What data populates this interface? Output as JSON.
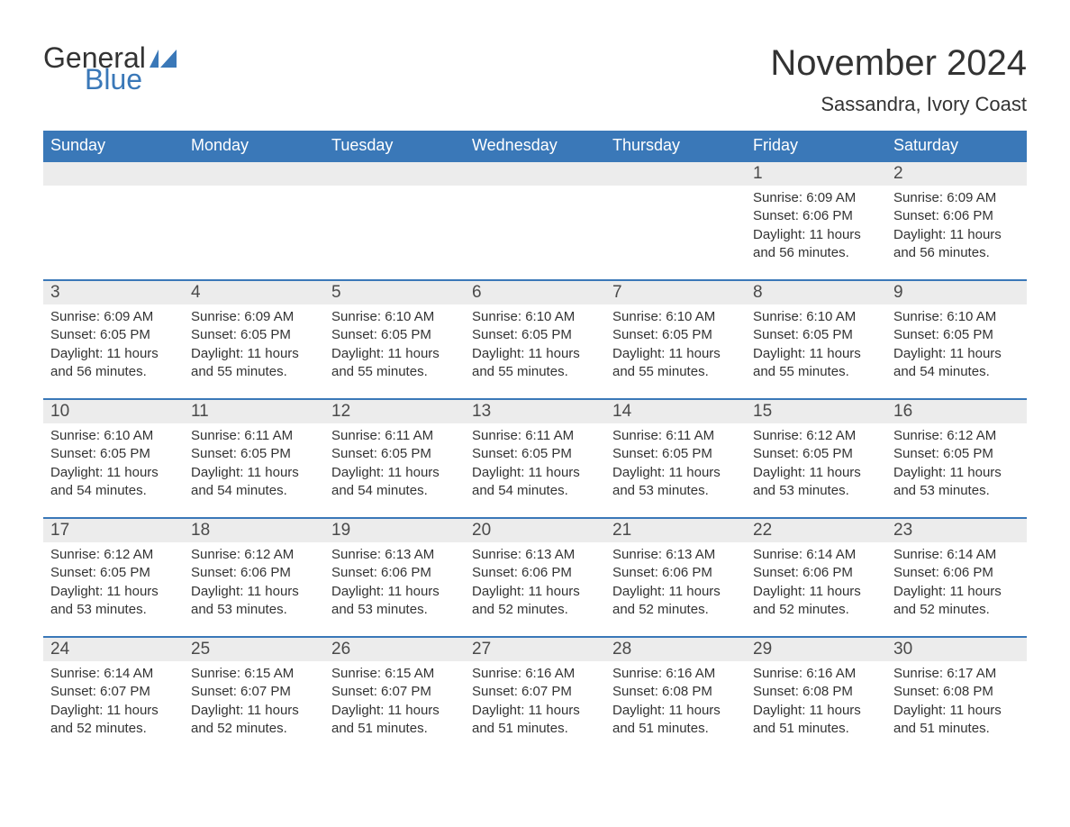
{
  "logo": {
    "part1": "General",
    "part2": "Blue",
    "flag_color": "#3a78b8"
  },
  "title": "November 2024",
  "location": "Sassandra, Ivory Coast",
  "colors": {
    "header_bg": "#3a78b8",
    "header_text": "#ffffff",
    "daynum_bg": "#ececec",
    "daynum_border": "#3a78b8",
    "body_text": "#333333",
    "page_bg": "#ffffff"
  },
  "weekdays": [
    "Sunday",
    "Monday",
    "Tuesday",
    "Wednesday",
    "Thursday",
    "Friday",
    "Saturday"
  ],
  "weeks": [
    [
      null,
      null,
      null,
      null,
      null,
      {
        "day": "1",
        "sunrise": "6:09 AM",
        "sunset": "6:06 PM",
        "daylight": "11 hours and 56 minutes."
      },
      {
        "day": "2",
        "sunrise": "6:09 AM",
        "sunset": "6:06 PM",
        "daylight": "11 hours and 56 minutes."
      }
    ],
    [
      {
        "day": "3",
        "sunrise": "6:09 AM",
        "sunset": "6:05 PM",
        "daylight": "11 hours and 56 minutes."
      },
      {
        "day": "4",
        "sunrise": "6:09 AM",
        "sunset": "6:05 PM",
        "daylight": "11 hours and 55 minutes."
      },
      {
        "day": "5",
        "sunrise": "6:10 AM",
        "sunset": "6:05 PM",
        "daylight": "11 hours and 55 minutes."
      },
      {
        "day": "6",
        "sunrise": "6:10 AM",
        "sunset": "6:05 PM",
        "daylight": "11 hours and 55 minutes."
      },
      {
        "day": "7",
        "sunrise": "6:10 AM",
        "sunset": "6:05 PM",
        "daylight": "11 hours and 55 minutes."
      },
      {
        "day": "8",
        "sunrise": "6:10 AM",
        "sunset": "6:05 PM",
        "daylight": "11 hours and 55 minutes."
      },
      {
        "day": "9",
        "sunrise": "6:10 AM",
        "sunset": "6:05 PM",
        "daylight": "11 hours and 54 minutes."
      }
    ],
    [
      {
        "day": "10",
        "sunrise": "6:10 AM",
        "sunset": "6:05 PM",
        "daylight": "11 hours and 54 minutes."
      },
      {
        "day": "11",
        "sunrise": "6:11 AM",
        "sunset": "6:05 PM",
        "daylight": "11 hours and 54 minutes."
      },
      {
        "day": "12",
        "sunrise": "6:11 AM",
        "sunset": "6:05 PM",
        "daylight": "11 hours and 54 minutes."
      },
      {
        "day": "13",
        "sunrise": "6:11 AM",
        "sunset": "6:05 PM",
        "daylight": "11 hours and 54 minutes."
      },
      {
        "day": "14",
        "sunrise": "6:11 AM",
        "sunset": "6:05 PM",
        "daylight": "11 hours and 53 minutes."
      },
      {
        "day": "15",
        "sunrise": "6:12 AM",
        "sunset": "6:05 PM",
        "daylight": "11 hours and 53 minutes."
      },
      {
        "day": "16",
        "sunrise": "6:12 AM",
        "sunset": "6:05 PM",
        "daylight": "11 hours and 53 minutes."
      }
    ],
    [
      {
        "day": "17",
        "sunrise": "6:12 AM",
        "sunset": "6:05 PM",
        "daylight": "11 hours and 53 minutes."
      },
      {
        "day": "18",
        "sunrise": "6:12 AM",
        "sunset": "6:06 PM",
        "daylight": "11 hours and 53 minutes."
      },
      {
        "day": "19",
        "sunrise": "6:13 AM",
        "sunset": "6:06 PM",
        "daylight": "11 hours and 53 minutes."
      },
      {
        "day": "20",
        "sunrise": "6:13 AM",
        "sunset": "6:06 PM",
        "daylight": "11 hours and 52 minutes."
      },
      {
        "day": "21",
        "sunrise": "6:13 AM",
        "sunset": "6:06 PM",
        "daylight": "11 hours and 52 minutes."
      },
      {
        "day": "22",
        "sunrise": "6:14 AM",
        "sunset": "6:06 PM",
        "daylight": "11 hours and 52 minutes."
      },
      {
        "day": "23",
        "sunrise": "6:14 AM",
        "sunset": "6:06 PM",
        "daylight": "11 hours and 52 minutes."
      }
    ],
    [
      {
        "day": "24",
        "sunrise": "6:14 AM",
        "sunset": "6:07 PM",
        "daylight": "11 hours and 52 minutes."
      },
      {
        "day": "25",
        "sunrise": "6:15 AM",
        "sunset": "6:07 PM",
        "daylight": "11 hours and 52 minutes."
      },
      {
        "day": "26",
        "sunrise": "6:15 AM",
        "sunset": "6:07 PM",
        "daylight": "11 hours and 51 minutes."
      },
      {
        "day": "27",
        "sunrise": "6:16 AM",
        "sunset": "6:07 PM",
        "daylight": "11 hours and 51 minutes."
      },
      {
        "day": "28",
        "sunrise": "6:16 AM",
        "sunset": "6:08 PM",
        "daylight": "11 hours and 51 minutes."
      },
      {
        "day": "29",
        "sunrise": "6:16 AM",
        "sunset": "6:08 PM",
        "daylight": "11 hours and 51 minutes."
      },
      {
        "day": "30",
        "sunrise": "6:17 AM",
        "sunset": "6:08 PM",
        "daylight": "11 hours and 51 minutes."
      }
    ]
  ],
  "labels": {
    "sunrise": "Sunrise:",
    "sunset": "Sunset:",
    "daylight": "Daylight:"
  }
}
